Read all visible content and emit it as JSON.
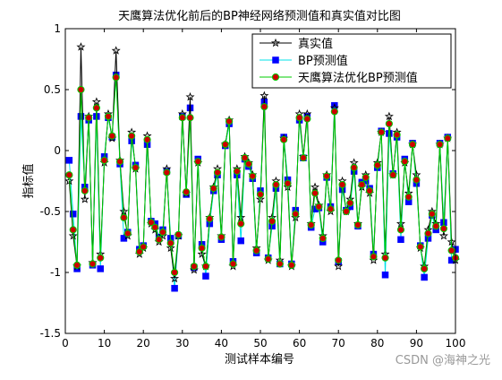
{
  "chart_data": {
    "type": "line",
    "title": "天鹰算法优化前后的BP神经网络预测值和真实值对比图",
    "xlabel": "测试样本编号",
    "ylabel": "指标值",
    "xlim": [
      0,
      100
    ],
    "ylim": [
      -1.5,
      1
    ],
    "xticks": [
      "0",
      "10",
      "20",
      "30",
      "40",
      "50",
      "60",
      "70",
      "80",
      "90",
      "100"
    ],
    "yticks": [
      "-1.5",
      "-1",
      "-0.5",
      "0",
      "0.5",
      "1"
    ],
    "xtick_values": [
      0,
      10,
      20,
      30,
      40,
      50,
      60,
      70,
      80,
      90,
      100
    ],
    "ytick_values": [
      -1.5,
      -1,
      -0.5,
      0,
      0.5,
      1
    ],
    "grid": false,
    "legend_position": "top-right",
    "x": [
      1,
      2,
      3,
      4,
      5,
      6,
      7,
      8,
      9,
      10,
      11,
      12,
      13,
      14,
      15,
      16,
      17,
      18,
      19,
      20,
      21,
      22,
      23,
      24,
      25,
      26,
      27,
      28,
      29,
      30,
      31,
      32,
      33,
      34,
      35,
      36,
      37,
      38,
      39,
      40,
      41,
      42,
      43,
      44,
      45,
      46,
      47,
      48,
      49,
      50,
      51,
      52,
      53,
      54,
      55,
      56,
      57,
      58,
      59,
      60,
      61,
      62,
      63,
      64,
      65,
      66,
      67,
      68,
      69,
      70,
      71,
      72,
      73,
      74,
      75,
      76,
      77,
      78,
      79,
      80,
      81,
      82,
      83,
      84,
      85,
      86,
      87,
      88,
      89,
      90,
      91,
      92,
      93,
      94,
      95,
      96,
      97,
      98,
      99,
      100
    ],
    "series": [
      {
        "name": "真实值",
        "color": "#000000",
        "marker": "star",
        "values": [
          -0.25,
          -0.7,
          -0.95,
          0.85,
          -0.4,
          0.28,
          -0.92,
          0.4,
          -0.85,
          -0.1,
          0.3,
          0.1,
          0.82,
          -0.08,
          -0.5,
          -0.7,
          0.15,
          -0.15,
          -0.85,
          -0.8,
          0.12,
          -0.6,
          -0.65,
          -0.75,
          -0.7,
          -0.15,
          -0.8,
          -1.05,
          -0.7,
          0.3,
          -0.35,
          0.44,
          -0.98,
          -0.1,
          -0.85,
          -0.95,
          -0.55,
          -0.3,
          -0.15,
          -0.7,
          0.05,
          0.25,
          -0.95,
          -0.15,
          -0.55,
          -0.05,
          -0.1,
          -0.2,
          -0.8,
          -0.4,
          0.45,
          -0.9,
          -0.55,
          -0.25,
          -0.9,
          0.1,
          -0.3,
          -0.95,
          -0.55,
          0.3,
          -0.05,
          0.3,
          -0.6,
          -0.3,
          -0.45,
          -0.7,
          -0.2,
          -0.5,
          0.35,
          -0.95,
          -0.25,
          -0.5,
          -0.4,
          -0.1,
          -0.6,
          -0.3,
          -0.2,
          -0.35,
          -0.9,
          -0.1,
          0.15,
          -0.85,
          0.28,
          -0.2,
          0.15,
          -0.6,
          -0.1,
          -0.35,
          0.05,
          -0.2,
          -0.8,
          -0.95,
          -0.65,
          -0.5,
          -0.6,
          0.05,
          -0.7,
          0.1,
          -0.75,
          -0.9
        ]
      },
      {
        "name": "BP预测值",
        "color": "#00e0e8",
        "marker": "square",
        "values": [
          -0.08,
          -0.52,
          -0.97,
          0.28,
          -0.3,
          0.25,
          -0.94,
          0.28,
          -0.97,
          -0.05,
          0.27,
          0.11,
          0.62,
          -0.11,
          -0.72,
          -0.67,
          0.08,
          -0.12,
          -0.81,
          -0.78,
          0.05,
          -0.58,
          -0.6,
          -0.71,
          -0.65,
          -0.17,
          -0.72,
          -1.13,
          -0.7,
          0.28,
          -0.36,
          0.35,
          -0.96,
          -0.07,
          -0.77,
          -1.03,
          -0.6,
          -0.33,
          -0.2,
          -0.73,
          0.04,
          0.22,
          -0.91,
          -0.2,
          -0.74,
          -0.07,
          -0.13,
          -0.23,
          -0.84,
          -0.33,
          0.4,
          -0.88,
          -0.62,
          -0.31,
          -0.93,
          0.11,
          -0.24,
          -0.93,
          -0.49,
          0.25,
          -0.06,
          0.28,
          -0.63,
          -0.48,
          -0.47,
          -0.75,
          -0.22,
          -0.46,
          0.37,
          -0.91,
          -0.32,
          -0.49,
          -0.46,
          -0.17,
          -0.62,
          -0.26,
          -0.25,
          -0.31,
          -0.85,
          -0.14,
          0.16,
          -1.02,
          0.14,
          -0.19,
          0.11,
          -0.73,
          -0.07,
          -0.42,
          0.06,
          -0.27,
          -0.78,
          -1.04,
          -0.72,
          -0.53,
          -0.65,
          0.06,
          -0.59,
          0.11,
          -0.9,
          -0.81
        ]
      },
      {
        "name": "天鹰算法优化BP预测值",
        "color": "#00cc00",
        "marker": "dot",
        "marker_fill": "#cc0000",
        "values": [
          -0.2,
          -0.65,
          -0.94,
          0.5,
          -0.33,
          0.27,
          -0.93,
          0.35,
          -0.88,
          -0.08,
          0.28,
          0.12,
          0.6,
          -0.09,
          -0.55,
          -0.68,
          0.12,
          -0.14,
          -0.83,
          -0.79,
          0.09,
          -0.59,
          -0.63,
          -0.73,
          -0.67,
          -0.18,
          -0.76,
          -1.0,
          -0.69,
          0.27,
          -0.34,
          0.27,
          -0.95,
          -0.09,
          -0.8,
          -0.95,
          -0.56,
          -0.31,
          -0.18,
          -0.71,
          0.05,
          0.24,
          -0.93,
          -0.17,
          -0.6,
          -0.06,
          -0.11,
          -0.21,
          -0.82,
          -0.36,
          0.36,
          -0.89,
          -0.58,
          -0.28,
          -0.93,
          0.09,
          -0.27,
          -0.94,
          -0.52,
          0.27,
          -0.06,
          0.26,
          -0.61,
          -0.35,
          -0.46,
          -0.72,
          -0.21,
          -0.48,
          0.32,
          -0.9,
          -0.28,
          -0.5,
          -0.43,
          -0.14,
          -0.61,
          -0.28,
          -0.22,
          -0.33,
          -0.87,
          -0.12,
          0.15,
          -0.88,
          0.22,
          -0.2,
          0.13,
          -0.65,
          -0.09,
          -0.38,
          0.05,
          -0.24,
          -0.79,
          -0.97,
          -0.68,
          -0.52,
          -0.62,
          0.05,
          -0.64,
          0.1,
          -0.82,
          -0.88
        ]
      }
    ]
  },
  "watermark": "CSDN @海神之光"
}
